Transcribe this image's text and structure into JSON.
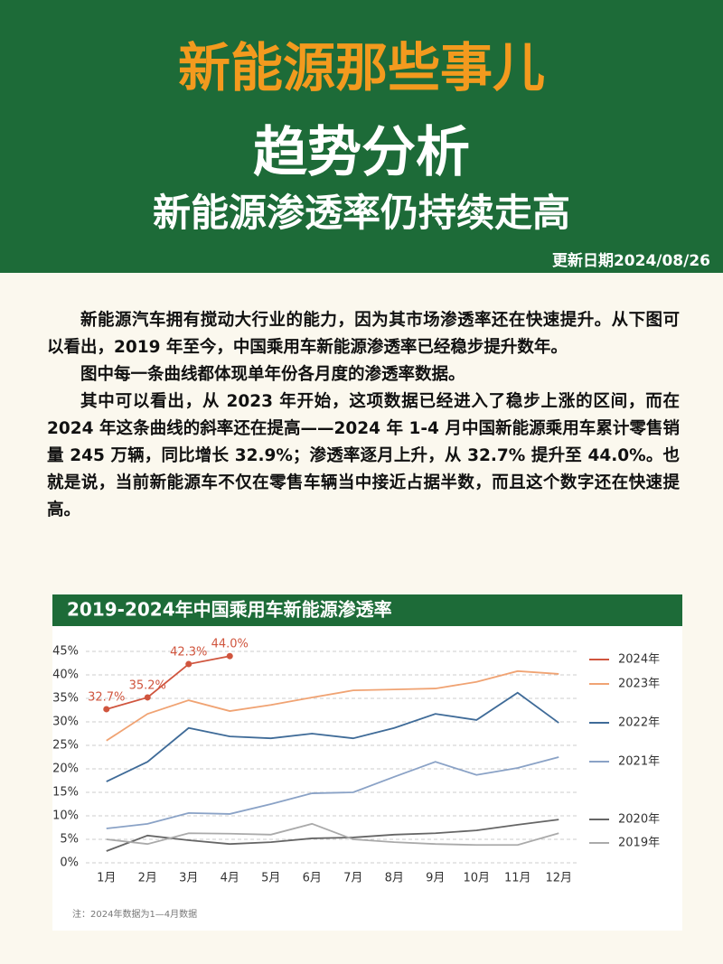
{
  "header": {
    "title": "新能源那些事儿",
    "subtitle": "趋势分析",
    "headline": "新能源渗透率仍持续走高",
    "date": "更新日期2024/08/26"
  },
  "body": {
    "paragraphs": [
      "新能源汽车拥有搅动大行业的能力，因为其市场渗透率还在快速提升。从下图可以看出，2019 年至今，中国乘用车新能源渗透率已经稳步提升数年。",
      "图中每一条曲线都体现单年份各月度的渗透率数据。",
      "其中可以看出，从 2023 年开始，这项数据已经进入了稳步上涨的区间，而在 2024 年这条曲线的斜率还在提高——2024 年 1-4 月中国新能源乘用车累计零售销量 245 万辆，同比增长 32.9%；渗透率逐月上升，从 32.7% 提升至 44.0%。也就是说，当前新能源车不仅在零售车辆当中接近占据半数，而且这个数字还在快速提高。"
    ]
  },
  "chart_data": {
    "type": "line",
    "title": "2019-2024年中国乘用车新能源渗透率",
    "note": "注：2024年数据为1—4月数据",
    "categories": [
      "1月",
      "2月",
      "3月",
      "4月",
      "5月",
      "6月",
      "7月",
      "8月",
      "9月",
      "10月",
      "11月",
      "12月"
    ],
    "series": [
      {
        "name": "2024年",
        "color": "#d0553e",
        "values": [
          32.7,
          35.2,
          42.3,
          44.0,
          null,
          null,
          null,
          null,
          null,
          null,
          null,
          null
        ],
        "value_labels": [
          "32.7%",
          "35.2%",
          "42.3%",
          "44.0%",
          null,
          null,
          null,
          null,
          null,
          null,
          null,
          null
        ]
      },
      {
        "name": "2023年",
        "color": "#f0a373",
        "values": [
          26.0,
          31.7,
          34.6,
          32.3,
          33.6,
          35.2,
          36.7,
          36.9,
          37.1,
          38.5,
          40.8,
          40.2
        ]
      },
      {
        "name": "2022年",
        "color": "#3f6b98",
        "values": [
          17.3,
          21.5,
          28.7,
          26.9,
          26.5,
          27.5,
          26.5,
          28.7,
          31.7,
          30.4,
          36.2,
          29.8
        ]
      },
      {
        "name": "2021年",
        "color": "#8aa2c6",
        "values": [
          7.3,
          8.3,
          10.6,
          10.4,
          12.5,
          14.8,
          15.0,
          18.3,
          21.5,
          18.7,
          20.2,
          22.5
        ]
      },
      {
        "name": "2020年",
        "color": "#666666",
        "values": [
          2.5,
          5.8,
          4.8,
          4.0,
          4.4,
          5.2,
          5.4,
          6.0,
          6.3,
          6.9,
          8.1,
          9.2
        ]
      },
      {
        "name": "2019年",
        "color": "#aaaaaa",
        "values": [
          5.0,
          4.0,
          6.3,
          6.2,
          6.0,
          8.3,
          5.0,
          4.4,
          4.0,
          3.8,
          3.8,
          6.3
        ]
      }
    ],
    "ylim": [
      0,
      45
    ],
    "yticks": [
      {
        "value": 0,
        "label": "0%"
      },
      {
        "value": 5,
        "label": "5%"
      },
      {
        "value": 10,
        "label": "10%"
      },
      {
        "value": 15,
        "label": "15%"
      },
      {
        "value": 20,
        "label": "20%"
      },
      {
        "value": 25,
        "label": "25%"
      },
      {
        "value": 30,
        "label": "30%"
      },
      {
        "value": 35,
        "label": "35%"
      },
      {
        "value": 40,
        "label": "40%"
      },
      {
        "value": 45,
        "label": "45%"
      }
    ],
    "grid": true,
    "legend": "right"
  }
}
